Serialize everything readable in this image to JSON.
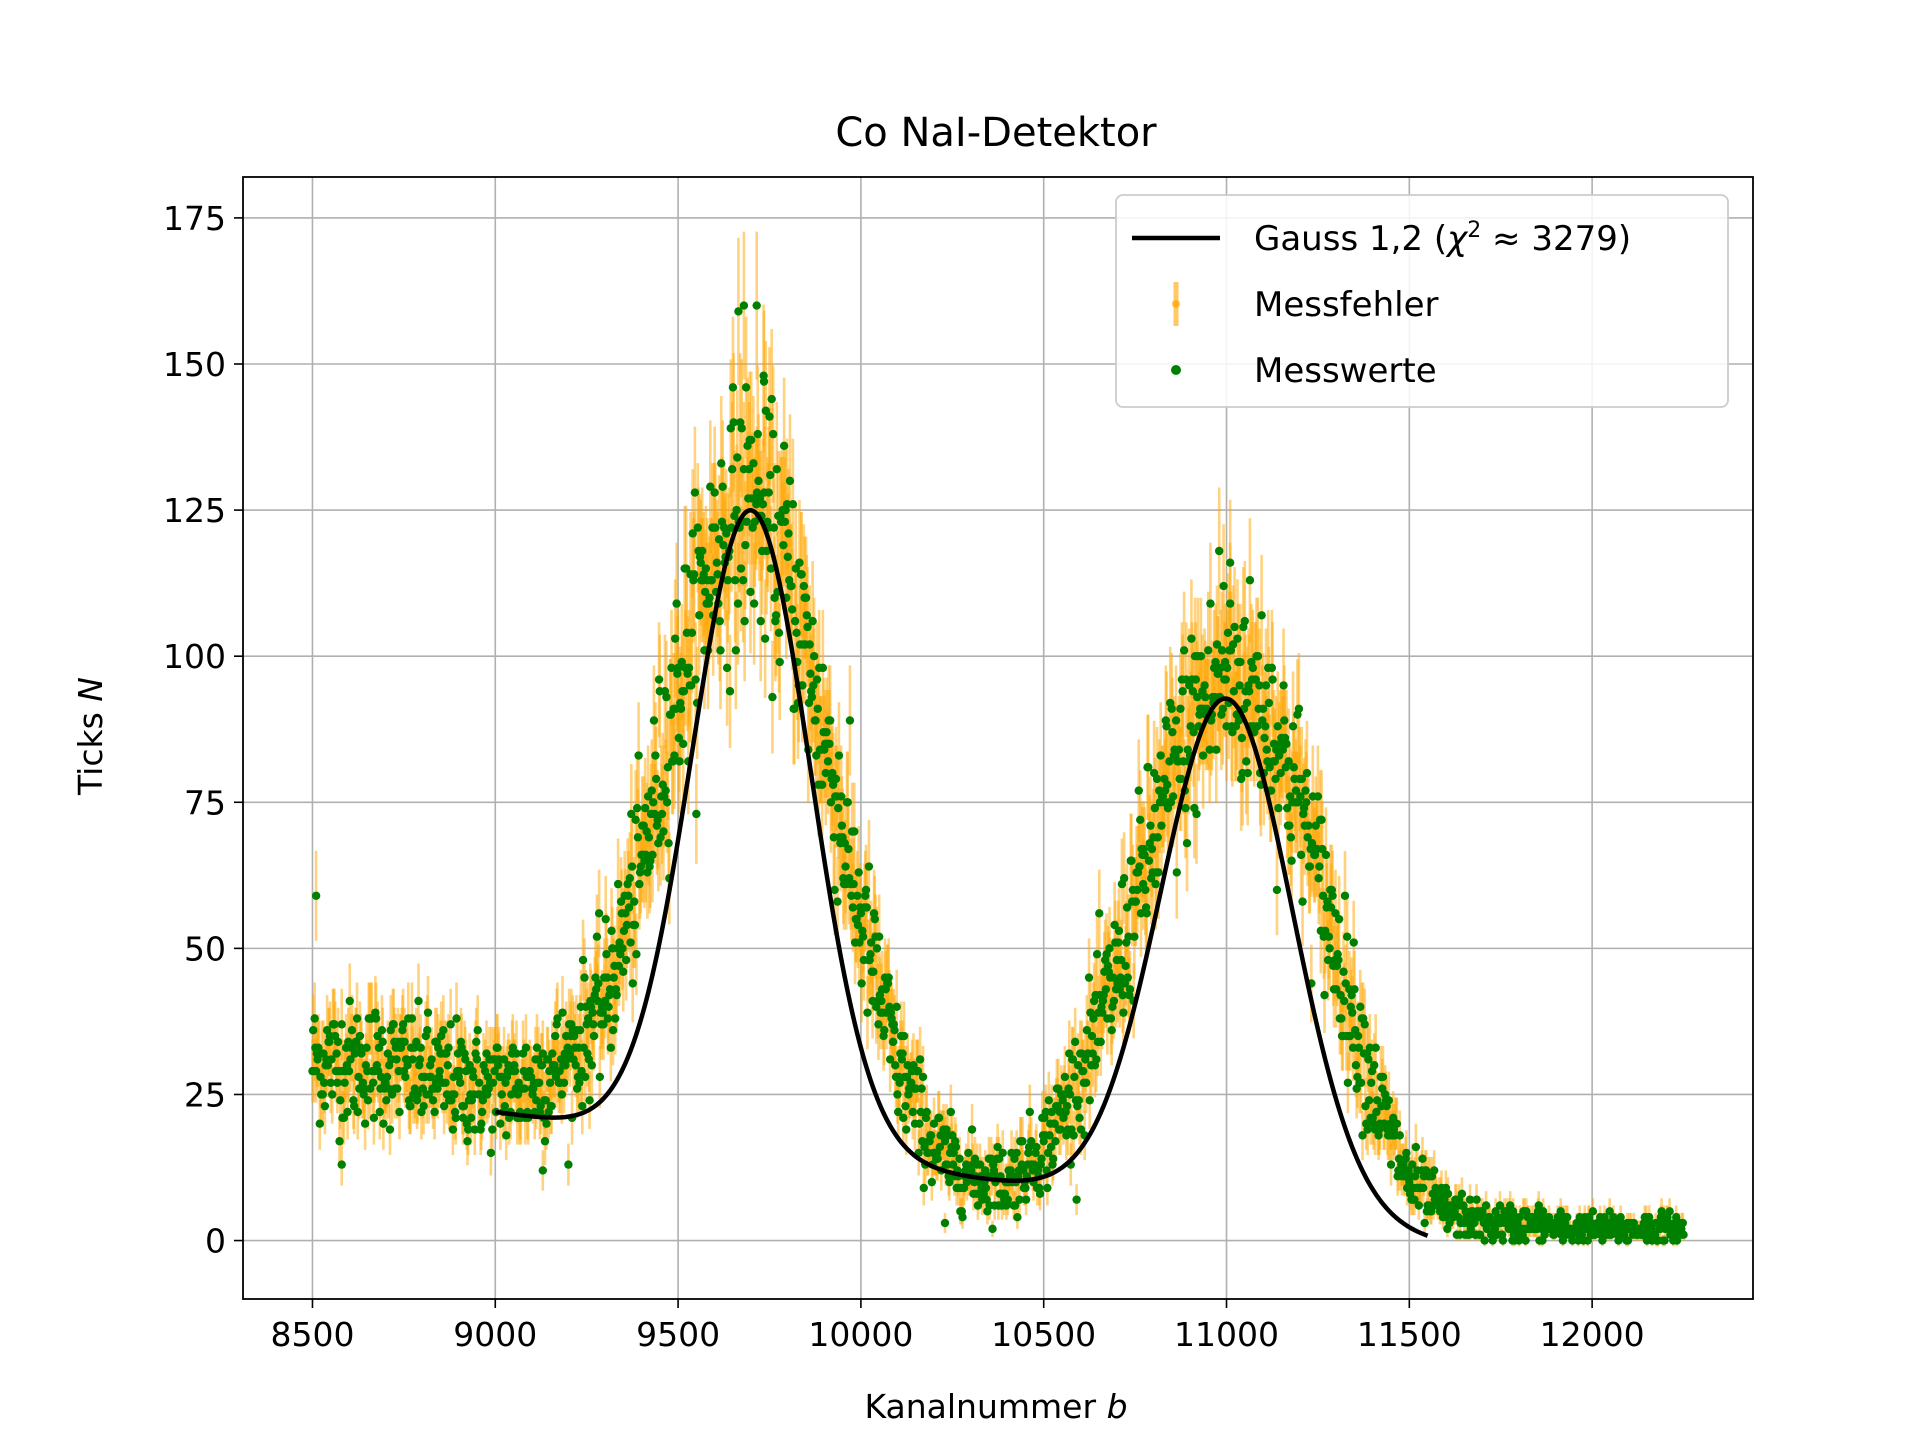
{
  "chart_data": {
    "type": "scatter",
    "title": "Co NaI-Detektor",
    "xlabel": "Kanalnummer",
    "xlabel_var": "b",
    "ylabel": "Ticks",
    "ylabel_var": "N",
    "xlim": [
      8310,
      12440
    ],
    "ylim": [
      -10,
      182
    ],
    "xticks": [
      8500,
      9000,
      9500,
      10000,
      10500,
      11000,
      11500,
      12000
    ],
    "yticks": [
      0,
      25,
      50,
      75,
      100,
      125,
      150,
      175
    ],
    "grid": true,
    "legend_position": "top-right",
    "legend": {
      "fit_prefix": "Gauss 1,2 (",
      "fit_chi": "χ",
      "fit_sup": "2",
      "fit_suffix": " ≈ 3279)",
      "errors": "Messfehler",
      "points": "Messwerte"
    },
    "colors": {
      "fit": "#000000",
      "errorbar": "#FFA500",
      "points": "#008000",
      "grid": "#b0b0b0"
    },
    "fit_curve": {
      "x_range": [
        9000,
        11550
      ],
      "model": "two gaussians with linear background",
      "components": [
        {
          "amplitude": 109,
          "mu": 9700,
          "sigma": 162
        },
        {
          "amplitude": 88,
          "mu": 11000,
          "sigma": 180
        }
      ],
      "background": {
        "start": [
          9000,
          22
        ],
        "end": [
          11550,
          0
        ]
      }
    },
    "series": [
      {
        "name": "Messwerte",
        "kind": "points_with_errorbars",
        "x_range": [
          8500,
          12250
        ],
        "profile": [
          [
            8500,
            31
          ],
          [
            8700,
            30
          ],
          [
            8900,
            27
          ],
          [
            9000,
            26
          ],
          [
            9100,
            27
          ],
          [
            9200,
            31
          ],
          [
            9300,
            41
          ],
          [
            9400,
            64
          ],
          [
            9500,
            95
          ],
          [
            9600,
            118
          ],
          [
            9700,
            127
          ],
          [
            9800,
            115
          ],
          [
            9900,
            86
          ],
          [
            10000,
            55
          ],
          [
            10100,
            30
          ],
          [
            10200,
            16
          ],
          [
            10300,
            11
          ],
          [
            10400,
            10
          ],
          [
            10500,
            16
          ],
          [
            10600,
            28
          ],
          [
            10700,
            46
          ],
          [
            10800,
            69
          ],
          [
            10900,
            88
          ],
          [
            11000,
            97
          ],
          [
            11100,
            92
          ],
          [
            11200,
            75
          ],
          [
            11300,
            50
          ],
          [
            11400,
            26
          ],
          [
            11500,
            10
          ],
          [
            11600,
            5
          ],
          [
            11700,
            3
          ],
          [
            12000,
            2
          ],
          [
            12250,
            2
          ]
        ],
        "outliers": [
          {
            "x": 8510,
            "y": 59
          },
          {
            "x": 9680,
            "y": 160
          },
          {
            "x": 9715,
            "y": 160
          },
          {
            "x": 9665,
            "y": 159
          },
          {
            "x": 9735,
            "y": 147
          },
          {
            "x": 10980,
            "y": 118
          },
          {
            "x": 11010,
            "y": 116
          },
          {
            "x": 8580,
            "y": 13
          },
          {
            "x": 9130,
            "y": 12
          },
          {
            "x": 10230,
            "y": 3
          }
        ]
      }
    ]
  }
}
